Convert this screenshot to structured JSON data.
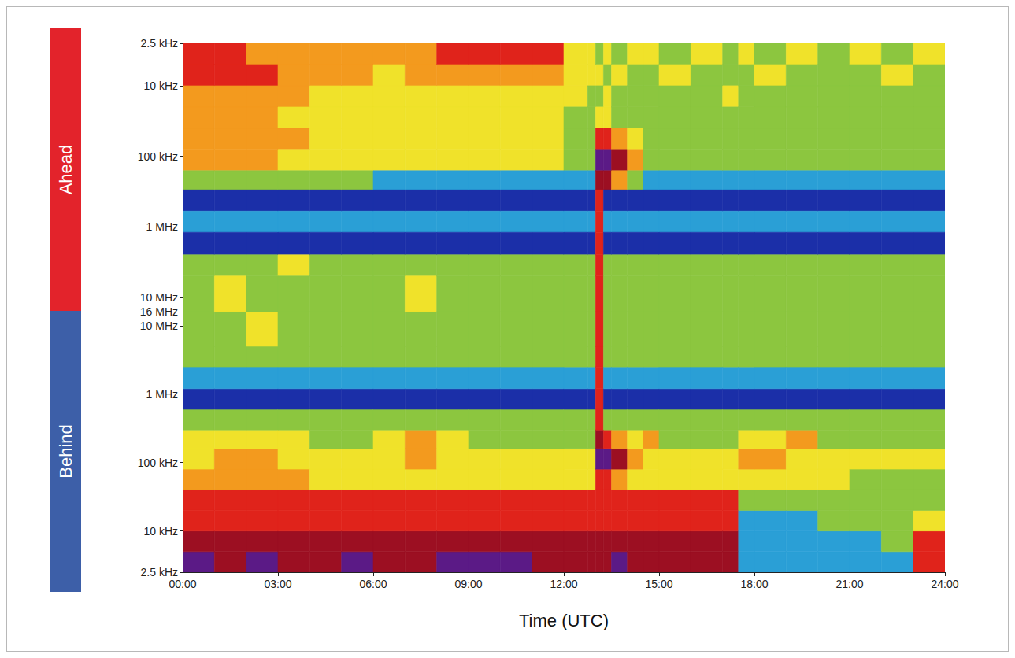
{
  "chart_data": {
    "type": "heatmap",
    "x_label": "Time (UTC)",
    "xlim": [
      0,
      24
    ],
    "xticks": [
      {
        "value": 0,
        "label": "00:00"
      },
      {
        "value": 3,
        "label": "03:00"
      },
      {
        "value": 6,
        "label": "06:00"
      },
      {
        "value": 9,
        "label": "09:00"
      },
      {
        "value": 12,
        "label": "12:00"
      },
      {
        "value": 15,
        "label": "15:00"
      },
      {
        "value": 18,
        "label": "18:00"
      },
      {
        "value": 21,
        "label": "21:00"
      },
      {
        "value": 24,
        "label": "24:00"
      }
    ],
    "log": "y",
    "grid": false,
    "colors": [
      "#1b2fa8",
      "#2a9fd6",
      "#8cc63f",
      "#f0e22a",
      "#f39a1e",
      "#e0231b",
      "#9c0f22",
      "#5b1a86"
    ],
    "time_edges": [
      0,
      1,
      2,
      3,
      4,
      5,
      6,
      7,
      8,
      9,
      10,
      11,
      12,
      12.75,
      13,
      13.25,
      13.5,
      14,
      14.5,
      15,
      16,
      17,
      17.5,
      18,
      19,
      20,
      21,
      22,
      23,
      24
    ],
    "freq_edges": [
      2.5,
      5,
      10,
      20,
      40,
      80,
      160,
      300,
      600,
      1200,
      2500,
      5000,
      16000
    ],
    "panels": [
      {
        "title": "Ahead",
        "color": "#e3232b",
        "ylim": [
          2.5,
          16000
        ],
        "yticks": [
          {
            "value": 2.5,
            "label": "2.5 kHz"
          },
          {
            "value": 10,
            "label": "10 kHz"
          },
          {
            "value": 100,
            "label": "100 kHz"
          },
          {
            "value": 1000,
            "label": "1 MHz"
          },
          {
            "value": 10000,
            "label": "10 MHz"
          },
          {
            "value": 16000,
            "label": "16 MHz"
          }
        ],
        "cells": [
          [
            5,
            5,
            4,
            4,
            4,
            4,
            2,
            0,
            1,
            0,
            2,
            2
          ],
          [
            5,
            5,
            4,
            4,
            4,
            4,
            2,
            0,
            1,
            0,
            2,
            3
          ],
          [
            4,
            5,
            4,
            4,
            4,
            4,
            2,
            0,
            1,
            0,
            2,
            2
          ],
          [
            4,
            4,
            4,
            3,
            4,
            3,
            2,
            0,
            1,
            0,
            3,
            2
          ],
          [
            4,
            4,
            3,
            3,
            3,
            3,
            2,
            0,
            1,
            0,
            2,
            2
          ],
          [
            4,
            4,
            3,
            3,
            3,
            3,
            2,
            0,
            1,
            0,
            2,
            2
          ],
          [
            4,
            3,
            3,
            3,
            3,
            3,
            1,
            0,
            1,
            0,
            2,
            2
          ],
          [
            4,
            4,
            3,
            3,
            3,
            3,
            1,
            0,
            1,
            0,
            2,
            3
          ],
          [
            5,
            4,
            3,
            3,
            3,
            3,
            1,
            0,
            1,
            0,
            2,
            2
          ],
          [
            5,
            4,
            3,
            3,
            3,
            3,
            1,
            0,
            1,
            0,
            2,
            2
          ],
          [
            5,
            4,
            3,
            3,
            3,
            3,
            1,
            0,
            1,
            0,
            2,
            2
          ],
          [
            5,
            4,
            3,
            3,
            3,
            3,
            1,
            0,
            1,
            0,
            2,
            2
          ],
          [
            3,
            3,
            3,
            2,
            2,
            2,
            1,
            0,
            1,
            0,
            2,
            2
          ],
          [
            3,
            3,
            2,
            2,
            2,
            2,
            1,
            0,
            1,
            0,
            2,
            2
          ],
          [
            2,
            3,
            2,
            3,
            5,
            7,
            6,
            5,
            5,
            5,
            5,
            5
          ],
          [
            3,
            2,
            3,
            3,
            5,
            7,
            6,
            0,
            1,
            0,
            2,
            2
          ],
          [
            2,
            3,
            2,
            2,
            4,
            6,
            4,
            0,
            1,
            0,
            2,
            2
          ],
          [
            3,
            2,
            2,
            2,
            3,
            4,
            2,
            0,
            1,
            0,
            2,
            2
          ],
          [
            3,
            2,
            2,
            2,
            2,
            2,
            1,
            0,
            1,
            0,
            2,
            2
          ],
          [
            2,
            3,
            2,
            2,
            2,
            2,
            1,
            0,
            1,
            0,
            2,
            2
          ],
          [
            3,
            2,
            2,
            2,
            2,
            2,
            1,
            0,
            1,
            0,
            2,
            2
          ],
          [
            2,
            2,
            3,
            2,
            2,
            2,
            1,
            0,
            1,
            0,
            2,
            2
          ],
          [
            3,
            2,
            2,
            2,
            2,
            2,
            1,
            0,
            1,
            0,
            2,
            2
          ],
          [
            2,
            3,
            2,
            2,
            2,
            2,
            1,
            0,
            1,
            0,
            2,
            2
          ],
          [
            3,
            2,
            2,
            2,
            2,
            2,
            1,
            0,
            1,
            0,
            2,
            2
          ],
          [
            2,
            2,
            2,
            2,
            2,
            2,
            1,
            0,
            1,
            0,
            2,
            2
          ],
          [
            3,
            2,
            2,
            2,
            2,
            2,
            1,
            0,
            1,
            0,
            2,
            2
          ],
          [
            2,
            3,
            2,
            2,
            2,
            2,
            1,
            0,
            1,
            0,
            2,
            2
          ],
          [
            3,
            2,
            2,
            2,
            2,
            2,
            1,
            0,
            1,
            0,
            2,
            2
          ]
        ]
      },
      {
        "title": "Behind",
        "color": "#3d5fa8",
        "ylim": [
          2.5,
          16000
        ],
        "yticks": [
          {
            "value": 2.5,
            "label": "2.5 kHz"
          },
          {
            "value": 10,
            "label": "10 kHz"
          },
          {
            "value": 100,
            "label": "100 kHz"
          },
          {
            "value": 1000,
            "label": "1 MHz"
          },
          {
            "value": 10000,
            "label": "10 MHz"
          }
        ],
        "cells": [
          [
            7,
            6,
            5,
            5,
            4,
            3,
            3,
            2,
            0,
            1,
            2,
            2
          ],
          [
            6,
            6,
            5,
            5,
            4,
            4,
            3,
            2,
            0,
            1,
            2,
            2
          ],
          [
            7,
            6,
            5,
            5,
            4,
            4,
            3,
            2,
            0,
            1,
            2,
            3
          ],
          [
            6,
            6,
            5,
            5,
            4,
            3,
            3,
            2,
            0,
            1,
            2,
            2
          ],
          [
            6,
            6,
            5,
            5,
            3,
            3,
            2,
            2,
            0,
            1,
            2,
            2
          ],
          [
            7,
            6,
            5,
            5,
            3,
            3,
            2,
            2,
            0,
            1,
            2,
            2
          ],
          [
            6,
            6,
            5,
            5,
            3,
            3,
            3,
            2,
            0,
            1,
            2,
            2
          ],
          [
            6,
            6,
            5,
            5,
            3,
            4,
            4,
            2,
            0,
            1,
            2,
            2
          ],
          [
            7,
            6,
            5,
            5,
            3,
            3,
            3,
            2,
            0,
            1,
            2,
            2
          ],
          [
            7,
            6,
            5,
            5,
            3,
            3,
            2,
            2,
            0,
            1,
            2,
            2
          ],
          [
            7,
            6,
            5,
            5,
            3,
            3,
            2,
            2,
            0,
            1,
            2,
            2
          ],
          [
            6,
            6,
            5,
            5,
            3,
            3,
            2,
            2,
            0,
            1,
            2,
            2
          ],
          [
            6,
            6,
            5,
            5,
            3,
            3,
            2,
            2,
            0,
            1,
            2,
            2
          ],
          [
            6,
            6,
            5,
            5,
            3,
            3,
            2,
            2,
            0,
            1,
            2,
            2
          ],
          [
            6,
            6,
            5,
            5,
            5,
            7,
            6,
            5,
            5,
            5,
            5,
            5
          ],
          [
            6,
            6,
            5,
            5,
            5,
            7,
            5,
            2,
            0,
            1,
            2,
            2
          ],
          [
            7,
            6,
            5,
            5,
            4,
            6,
            4,
            2,
            0,
            1,
            2,
            2
          ],
          [
            6,
            6,
            5,
            5,
            3,
            4,
            3,
            2,
            0,
            1,
            2,
            2
          ],
          [
            6,
            6,
            5,
            5,
            3,
            3,
            4,
            2,
            0,
            1,
            2,
            2
          ],
          [
            6,
            6,
            5,
            5,
            3,
            3,
            2,
            2,
            0,
            1,
            2,
            2
          ],
          [
            6,
            6,
            5,
            5,
            3,
            3,
            2,
            2,
            0,
            1,
            2,
            2
          ],
          [
            6,
            6,
            5,
            5,
            3,
            3,
            2,
            2,
            0,
            1,
            2,
            2
          ],
          [
            1,
            1,
            1,
            2,
            3,
            4,
            3,
            2,
            0,
            1,
            2,
            2
          ],
          [
            1,
            1,
            1,
            2,
            3,
            4,
            3,
            2,
            0,
            1,
            2,
            2
          ],
          [
            1,
            1,
            1,
            2,
            3,
            3,
            4,
            2,
            0,
            1,
            2,
            2
          ],
          [
            1,
            1,
            2,
            2,
            3,
            3,
            2,
            2,
            0,
            1,
            2,
            2
          ],
          [
            1,
            1,
            2,
            2,
            2,
            3,
            2,
            2,
            0,
            1,
            2,
            2
          ],
          [
            1,
            2,
            2,
            2,
            2,
            3,
            2,
            2,
            0,
            1,
            2,
            2
          ],
          [
            5,
            5,
            3,
            2,
            2,
            3,
            2,
            2,
            0,
            1,
            2,
            2
          ]
        ]
      }
    ]
  }
}
